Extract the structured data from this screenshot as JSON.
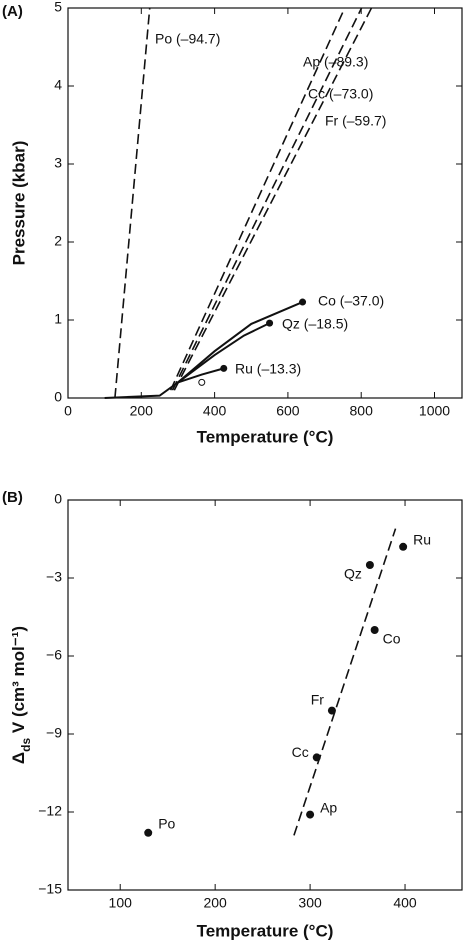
{
  "chart_data": [
    {
      "type": "line",
      "panel": "(A)",
      "xlabel": "Temperature (°C)",
      "ylabel": "Pressure (kbar)",
      "xlim": [
        0,
        1075
      ],
      "ylim": [
        0,
        5
      ],
      "xticks": [
        0,
        200,
        400,
        600,
        800,
        1000
      ],
      "yticks": [
        0,
        1,
        2,
        3,
        4,
        5
      ],
      "series": [
        {
          "name": "Po (–94.7)",
          "color": "#111",
          "dash": true,
          "x": [
            128,
            223
          ],
          "values": [
            0,
            5
          ]
        },
        {
          "name": "Ap (–89.3)",
          "color": "#111",
          "dash": true,
          "x": [
            280,
            755
          ],
          "values": [
            0.1,
            5
          ]
        },
        {
          "name": "Cc (–73.0)",
          "color": "#111",
          "dash": true,
          "x": [
            285,
            801
          ],
          "values": [
            0.1,
            5
          ]
        },
        {
          "name": "Fr (–59.7)",
          "color": "#111",
          "dash": true,
          "x": [
            290,
            828
          ],
          "values": [
            0.1,
            5
          ]
        },
        {
          "name": "Co (–37.0)",
          "color": "#111",
          "dash": false,
          "marker": "end",
          "x": [
            100,
            250,
            300,
            400,
            500,
            640
          ],
          "values": [
            0,
            0.03,
            0.2,
            0.6,
            0.95,
            1.23
          ]
        },
        {
          "name": "Qz (–18.5)",
          "color": "#111",
          "dash": false,
          "marker": "end",
          "x": [
            300,
            400,
            480,
            550
          ],
          "values": [
            0.2,
            0.55,
            0.8,
            0.96
          ]
        },
        {
          "name": "Ru (–13.3)",
          "color": "#111",
          "dash": false,
          "marker": "end",
          "x": [
            300,
            365,
            425
          ],
          "values": [
            0.2,
            0.3,
            0.38
          ]
        },
        {
          "color": "#111",
          "marker": "open",
          "x": [
            365
          ],
          "values": [
            0.2
          ]
        }
      ]
    },
    {
      "type": "scatter",
      "panel": "(B)",
      "xlabel": "Temperature (°C)",
      "ylabel": [
        "Δ",
        "ds",
        " V (cm³ mol⁻¹)"
      ],
      "xlim": [
        45,
        460
      ],
      "ylim": [
        -15,
        0
      ],
      "xticks": [
        100,
        200,
        300,
        400
      ],
      "yticks": [
        {
          "value": -15,
          "label": "−15"
        },
        {
          "value": -12,
          "label": "−12"
        },
        {
          "value": -9,
          "label": "−9"
        },
        {
          "value": -6,
          "label": "−6"
        },
        {
          "value": -3,
          "label": "−3"
        },
        0
      ],
      "labels": [
        "Po",
        "Ap",
        "Cc",
        "Fr",
        "Co",
        "Qz",
        "Ru"
      ],
      "x": [
        129.5,
        300,
        307,
        323,
        368,
        363,
        398
      ],
      "values": [
        -12.8,
        -12.1,
        -9.9,
        -8.1,
        -5.0,
        -2.5,
        -1.8
      ],
      "color": "#111",
      "fit": {
        "x": [
          283,
          390
        ],
        "values": [
          -12.9,
          -1.1
        ]
      }
    }
  ]
}
